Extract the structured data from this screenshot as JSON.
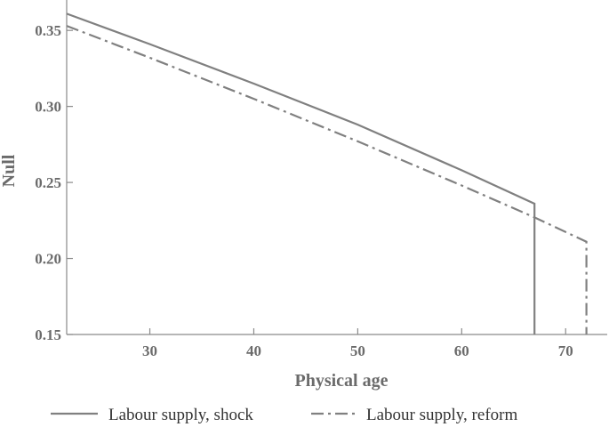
{
  "chart_data": {
    "type": "line",
    "xlabel": "Physical age",
    "ylabel": "Null",
    "xlim": [
      22,
      74
    ],
    "ylim": [
      0.15,
      0.37
    ],
    "x_ticks": [
      30,
      40,
      50,
      60,
      70
    ],
    "y_ticks": [
      0.15,
      0.2,
      0.25,
      0.3,
      0.35
    ],
    "x_tick_labels": [
      "30",
      "40",
      "50",
      "60",
      "70"
    ],
    "y_tick_labels": [
      "0.15",
      "0.20",
      "0.25",
      "0.30",
      "0.35"
    ],
    "grid": false,
    "legend_position": "bottom",
    "series": [
      {
        "name": "Labour supply, shock",
        "style": "solid",
        "color": "#808080",
        "x": [
          22,
          30,
          40,
          50,
          60,
          67,
          67
        ],
        "y": [
          0.361,
          0.341,
          0.315,
          0.288,
          0.258,
          0.236,
          0.15
        ]
      },
      {
        "name": "Labour supply, reform",
        "style": "dash-dot",
        "color": "#808080",
        "x": [
          22,
          30,
          40,
          50,
          60,
          67,
          72,
          72
        ],
        "y": [
          0.353,
          0.332,
          0.305,
          0.277,
          0.248,
          0.227,
          0.211,
          0.15
        ]
      }
    ]
  }
}
